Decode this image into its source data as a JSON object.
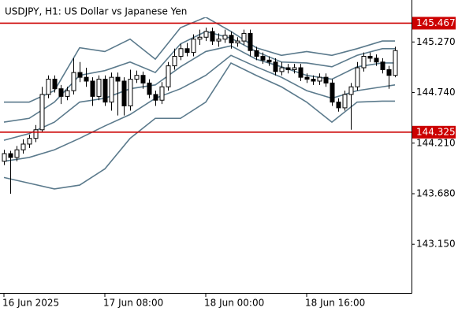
{
  "chart_data": {
    "type": "candlestick",
    "title": "USDJPY, H1:  US Dollar vs Japanese Yen",
    "ylim": [
      142.64,
      145.71
    ],
    "yticks": [
      {
        "value": 145.27,
        "label": "145.270"
      },
      {
        "value": 144.74,
        "label": "144.740"
      },
      {
        "value": 144.21,
        "label": "144.210"
      },
      {
        "value": 143.68,
        "label": "143.680"
      },
      {
        "value": 143.15,
        "label": "143.150"
      }
    ],
    "xticks": [
      {
        "value": 0,
        "label": "16 Jun 2025"
      },
      {
        "value": 16,
        "label": "17 Jun 08:00"
      },
      {
        "value": 32,
        "label": "18 Jun 00:00"
      },
      {
        "value": 48,
        "label": "18 Jun 16:00"
      }
    ],
    "open": [
      144.02,
      144.1,
      144.06,
      144.14,
      144.2,
      144.26,
      144.35,
      144.72,
      144.88,
      144.78,
      144.7,
      144.76,
      144.95,
      144.9,
      144.86,
      144.7,
      144.88,
      144.64,
      144.9,
      144.86,
      144.6,
      144.88,
      144.92,
      144.84,
      144.72,
      144.66,
      144.8,
      145.02,
      145.12,
      145.2,
      145.16,
      145.3,
      145.32,
      145.38,
      145.28,
      145.3,
      145.34,
      145.26,
      145.28,
      145.36,
      145.18,
      145.12,
      145.08,
      145.06,
      144.96,
      145.0,
      144.98,
      145.0,
      144.9,
      144.88,
      144.86,
      144.9,
      144.84,
      144.64,
      144.58,
      144.72,
      144.8,
      145.0,
      145.12,
      145.1,
      145.06,
      144.98,
      144.92
    ],
    "high": [
      144.14,
      144.13,
      144.18,
      144.25,
      144.3,
      144.4,
      144.8,
      144.92,
      144.92,
      144.82,
      144.8,
      145.1,
      145.06,
      145.0,
      144.9,
      144.92,
      144.92,
      144.95,
      144.95,
      144.9,
      144.98,
      144.97,
      144.96,
      144.88,
      144.76,
      144.85,
      145.06,
      145.2,
      145.25,
      145.26,
      145.35,
      145.4,
      145.42,
      145.42,
      145.36,
      145.4,
      145.38,
      145.32,
      145.4,
      145.4,
      145.22,
      145.16,
      145.12,
      145.1,
      145.06,
      145.04,
      145.04,
      145.04,
      144.94,
      144.92,
      144.94,
      144.94,
      144.88,
      144.68,
      144.76,
      144.84,
      145.06,
      145.16,
      145.16,
      145.14,
      145.1,
      145.02,
      145.22
    ],
    "low": [
      143.98,
      143.68,
      144.02,
      144.1,
      144.16,
      144.22,
      144.33,
      144.68,
      144.74,
      144.62,
      144.66,
      144.72,
      144.85,
      144.8,
      144.6,
      144.66,
      144.6,
      144.55,
      144.5,
      144.5,
      144.55,
      144.84,
      144.78,
      144.68,
      144.6,
      144.62,
      144.76,
      144.98,
      145.08,
      145.12,
      145.12,
      145.24,
      145.28,
      145.24,
      145.22,
      145.26,
      145.2,
      145.22,
      145.24,
      145.12,
      145.08,
      145.04,
      145.02,
      144.92,
      144.92,
      144.94,
      144.94,
      144.86,
      144.84,
      144.82,
      144.82,
      144.8,
      144.6,
      144.54,
      144.55,
      144.35,
      144.76,
      144.96,
      145.06,
      145.02,
      144.94,
      144.78,
      144.9
    ],
    "close": [
      144.1,
      144.06,
      144.14,
      144.2,
      144.26,
      144.35,
      144.72,
      144.88,
      144.78,
      144.7,
      144.76,
      144.95,
      144.9,
      144.86,
      144.7,
      144.88,
      144.64,
      144.9,
      144.86,
      144.6,
      144.88,
      144.92,
      144.84,
      144.72,
      144.66,
      144.8,
      145.02,
      145.12,
      145.2,
      145.16,
      145.3,
      145.32,
      145.38,
      145.28,
      145.3,
      145.34,
      145.26,
      145.28,
      145.36,
      145.18,
      145.12,
      145.08,
      145.06,
      144.96,
      145.0,
      144.98,
      145.0,
      144.9,
      144.88,
      144.86,
      144.9,
      144.84,
      144.64,
      144.58,
      144.72,
      144.8,
      145.0,
      145.12,
      145.1,
      145.06,
      144.98,
      144.92,
      145.18
    ],
    "candle_up_color": "#ffffff",
    "candle_down_color": "#000000",
    "band_x": [
      0,
      4,
      8,
      12,
      16,
      20,
      24,
      28,
      32,
      36,
      40,
      44,
      48,
      52,
      56,
      60,
      62
    ],
    "bands": [
      {
        "color": "#5b7a8c",
        "values": [
          144.64,
          144.64,
          144.76,
          145.21,
          145.17,
          145.3,
          145.09,
          145.42,
          145.53,
          145.38,
          145.21,
          145.13,
          145.17,
          145.13,
          145.2,
          145.28,
          145.28
        ]
      },
      {
        "color": "#5b7a8c",
        "values": [
          144.43,
          144.47,
          144.64,
          144.92,
          144.97,
          145.06,
          144.95,
          145.25,
          145.38,
          145.31,
          145.17,
          145.06,
          145.05,
          145.01,
          145.13,
          145.2,
          145.2
        ]
      },
      {
        "color": "#5b7a8c",
        "values": [
          144.24,
          144.31,
          144.43,
          144.64,
          144.68,
          144.78,
          144.82,
          145.01,
          145.17,
          145.23,
          145.09,
          145.01,
          144.92,
          144.88,
          145.01,
          145.05,
          145.05
        ]
      },
      {
        "color": "#5b7a8c",
        "values": [
          144.02,
          144.06,
          144.14,
          144.26,
          144.39,
          144.51,
          144.68,
          144.78,
          144.92,
          145.13,
          145.01,
          144.9,
          144.76,
          144.68,
          144.76,
          144.8,
          144.82
        ]
      },
      {
        "color": "#5b7a8c",
        "values": [
          143.85,
          143.79,
          143.73,
          143.77,
          143.94,
          144.26,
          144.47,
          144.47,
          144.64,
          145.05,
          144.92,
          144.8,
          144.64,
          144.43,
          144.64,
          144.65,
          144.65
        ]
      }
    ],
    "levels": [
      {
        "value": 145.467,
        "label": "145.467",
        "color": "#cc0000"
      },
      {
        "value": 144.325,
        "label": "144.325",
        "color": "#cc0000"
      }
    ]
  }
}
